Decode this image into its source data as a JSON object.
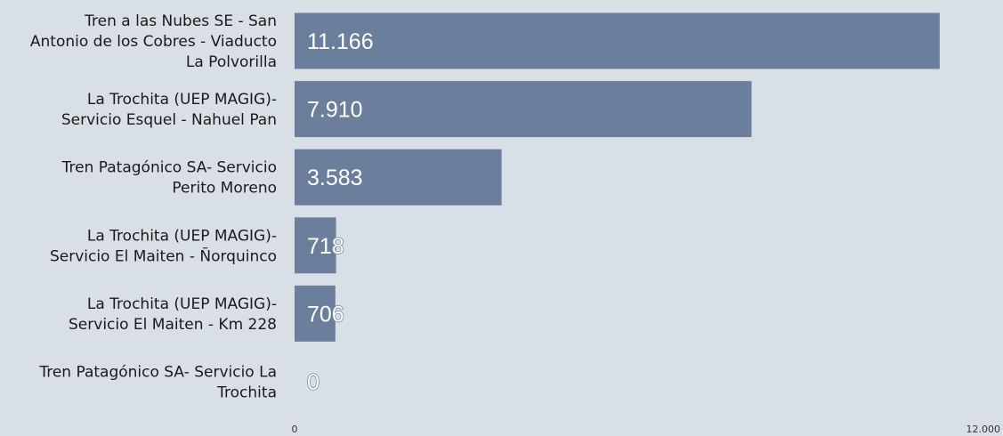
{
  "chart_data": {
    "type": "bar",
    "orientation": "horizontal",
    "categories": [
      [
        "Tren a las Nubes SE - San",
        "Antonio de los Cobres - Viaducto",
        "La Polvorilla"
      ],
      [
        "La Trochita (UEP MAGIG)-",
        "Servicio Esquel - Nahuel Pan"
      ],
      [
        "Tren Patagónico SA- Servicio",
        "Perito Moreno"
      ],
      [
        "La Trochita (UEP MAGIG)-",
        "Servicio El Maiten - Ñorquinco"
      ],
      [
        "La Trochita (UEP MAGIG)-",
        "Servicio El Maiten - Km 228"
      ],
      [
        "Tren Patagónico SA- Servicio La",
        "Trochita"
      ]
    ],
    "values": [
      11166,
      7910,
      3583,
      718,
      706,
      0
    ],
    "value_labels": [
      "11.166",
      "7.910",
      "3.583",
      "718",
      "706",
      "0"
    ],
    "xlim": [
      0,
      12000
    ],
    "tick_labels": [
      "0",
      "12.000"
    ],
    "grid": false,
    "legend": "none",
    "colors": {
      "background": "#d9dfe7",
      "bar": "#6b7f9c",
      "value_label_fill": "#ffffff",
      "value_label_stroke": "#6b7f9c",
      "category_text": "#1a1a1a",
      "tick_text": "#333333"
    }
  }
}
